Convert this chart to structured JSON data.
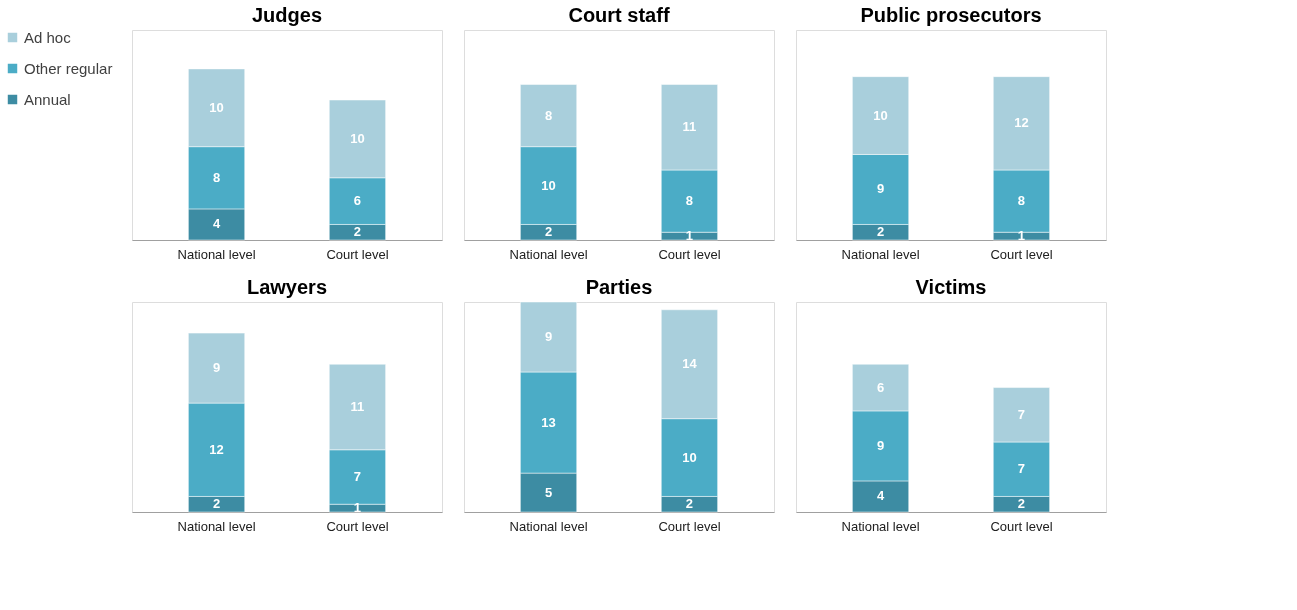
{
  "chart_data": [
    {
      "type": "bar",
      "title": "Judges",
      "stacked": true,
      "data_labels": true,
      "legend": "top left",
      "categories": [
        "National level",
        "Court level"
      ],
      "series": [
        {
          "name": "Annual",
          "color": "#3d8ca3",
          "values": [
            4,
            2
          ]
        },
        {
          "name": "Other regular",
          "color": "#4bacc6",
          "values": [
            8,
            6
          ]
        },
        {
          "name": "Ad hoc",
          "color": "#a9cfdc",
          "values": [
            10,
            10
          ]
        }
      ]
    },
    {
      "type": "bar",
      "title": "Court staff",
      "stacked": true,
      "data_labels": true,
      "categories": [
        "National level",
        "Court level"
      ],
      "series": [
        {
          "color": "#3d8ca3",
          "values": [
            2,
            1
          ]
        },
        {
          "color": "#4bacc6",
          "values": [
            10,
            8
          ]
        },
        {
          "color": "#a9cfdc",
          "values": [
            8,
            11
          ]
        }
      ]
    },
    {
      "type": "bar",
      "title": "Public prosecutors",
      "stacked": true,
      "data_labels": true,
      "categories": [
        "National level",
        "Court level"
      ],
      "series": [
        {
          "color": "#3d8ca3",
          "values": [
            2,
            1
          ]
        },
        {
          "color": "#4bacc6",
          "values": [
            9,
            8
          ]
        },
        {
          "color": "#a9cfdc",
          "values": [
            10,
            12
          ]
        }
      ]
    },
    {
      "type": "bar",
      "title": "Lawyers",
      "stacked": true,
      "data_labels": true,
      "categories": [
        "National level",
        "Court level"
      ],
      "series": [
        {
          "color": "#3d8ca3",
          "values": [
            2,
            1
          ]
        },
        {
          "color": "#4bacc6",
          "values": [
            12,
            7
          ]
        },
        {
          "color": "#a9cfdc",
          "values": [
            9,
            11
          ]
        }
      ]
    },
    {
      "type": "bar",
      "title": "Parties",
      "stacked": true,
      "data_labels": true,
      "categories": [
        "National level",
        "Court level"
      ],
      "series": [
        {
          "color": "#3d8ca3",
          "values": [
            5,
            2
          ]
        },
        {
          "color": "#4bacc6",
          "values": [
            13,
            10
          ]
        },
        {
          "color": "#a9cfdc",
          "values": [
            9,
            14
          ]
        }
      ]
    },
    {
      "type": "bar",
      "title": "Victims",
      "stacked": true,
      "data_labels": true,
      "categories": [
        "National level",
        "Court level"
      ],
      "series": [
        {
          "color": "#3d8ca3",
          "values": [
            4,
            2
          ]
        },
        {
          "color": "#4bacc6",
          "values": [
            9,
            7
          ]
        },
        {
          "color": "#a9cfdc",
          "values": [
            6,
            7
          ]
        }
      ]
    }
  ]
}
